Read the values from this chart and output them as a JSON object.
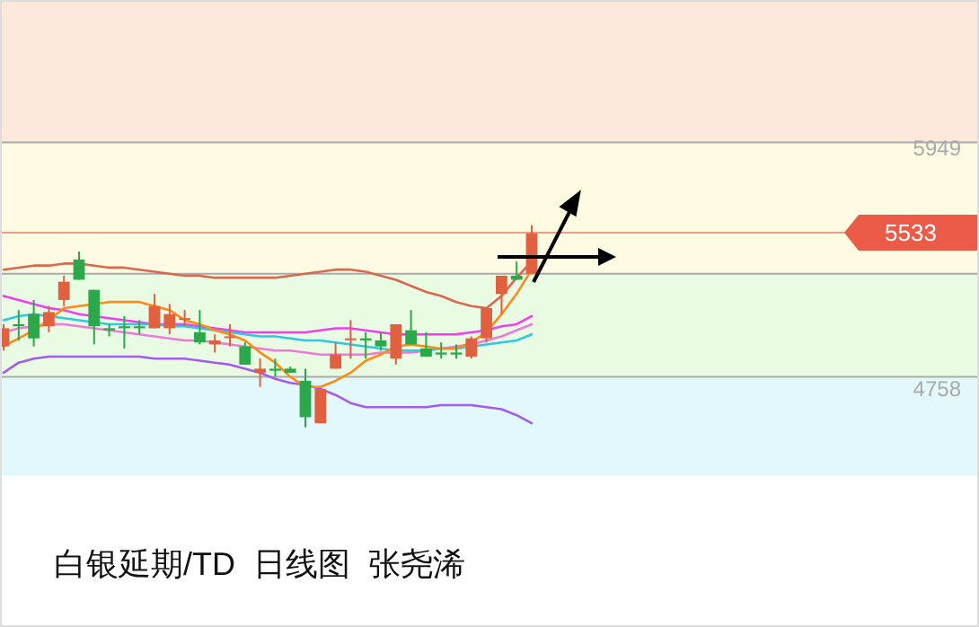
{
  "chart_data": {
    "type": "candlestick",
    "title": "白银延期/TD  日线图  张尧浠",
    "categories": [
      null,
      null,
      null,
      null,
      null,
      null,
      null,
      null,
      null,
      null,
      null,
      null,
      null,
      null,
      null,
      null,
      null,
      null,
      null,
      null,
      null,
      null,
      null,
      null,
      null,
      null,
      null,
      null,
      null,
      null,
      null,
      null,
      null,
      null,
      null,
      null
    ],
    "ohlc": [
      [
        4970,
        5080,
        4950,
        5060
      ],
      [
        5080,
        5150,
        5000,
        5070
      ],
      [
        5130,
        5200,
        4970,
        5010
      ],
      [
        5070,
        5170,
        5040,
        5140
      ],
      [
        5200,
        5320,
        5170,
        5290
      ],
      [
        5400,
        5440,
        5300,
        5300
      ],
      [
        5250,
        5250,
        4980,
        5070
      ],
      [
        5060,
        5080,
        5020,
        5050
      ],
      [
        5070,
        5120,
        4960,
        5060
      ],
      [
        5070,
        5100,
        5030,
        5060
      ],
      [
        5060,
        5230,
        5060,
        5170
      ],
      [
        5060,
        5180,
        5030,
        5130
      ],
      [
        5110,
        5150,
        5070,
        5110
      ],
      [
        5040,
        5150,
        4980,
        4990
      ],
      [
        4980,
        5030,
        4940,
        5000
      ],
      [
        5020,
        5080,
        4970,
        5020
      ],
      [
        4970,
        4990,
        4880,
        4880
      ],
      [
        4840,
        4910,
        4770,
        4860
      ],
      [
        4860,
        4910,
        4820,
        4850
      ],
      [
        4860,
        4870,
        4840,
        4840
      ],
      [
        4800,
        4860,
        4570,
        4620
      ],
      [
        4590,
        4760,
        4590,
        4760
      ],
      [
        4860,
        4990,
        4860,
        4930
      ],
      [
        5010,
        5100,
        4910,
        5010
      ],
      [
        5010,
        5040,
        4910,
        5000
      ],
      [
        5000,
        5040,
        4950,
        4970
      ],
      [
        4910,
        5080,
        4880,
        5080
      ],
      [
        5050,
        5150,
        4980,
        4980
      ],
      [
        4960,
        5040,
        4920,
        4920
      ],
      [
        4940,
        4990,
        4910,
        4930
      ],
      [
        4940,
        4980,
        4910,
        4930
      ],
      [
        4920,
        5020,
        4910,
        5010
      ],
      [
        5010,
        5160,
        4990,
        5160
      ],
      [
        5230,
        5320,
        5130,
        5320
      ],
      [
        5320,
        5390,
        5300,
        5300
      ],
      [
        5330,
        5570,
        5330,
        5530
      ]
    ],
    "series": [
      {
        "type": "line",
        "color": "#d9684f",
        "values": [
          5350,
          5360,
          5370,
          5370,
          5380,
          5380,
          5370,
          5360,
          5360,
          5350,
          5340,
          5330,
          5320,
          5320,
          5310,
          5310,
          5310,
          5310,
          5310,
          5320,
          5330,
          5340,
          5350,
          5350,
          5340,
          5320,
          5300,
          5270,
          5240,
          5220,
          5190,
          5170,
          5160,
          5220,
          5310,
          5390
        ]
      },
      {
        "type": "line",
        "color": "#a35cf0",
        "values": [
          4840,
          4890,
          4910,
          4920,
          4920,
          4920,
          4920,
          4920,
          4920,
          4920,
          4910,
          4910,
          4910,
          4900,
          4890,
          4880,
          4860,
          4840,
          4810,
          4790,
          4780,
          4760,
          4730,
          4690,
          4670,
          4670,
          4670,
          4670,
          4670,
          4680,
          4680,
          4680,
          4670,
          4660,
          4630,
          4590
        ]
      },
      {
        "type": "line",
        "color": "#f03ff0",
        "values": [
          5220,
          5200,
          5180,
          5160,
          5150,
          5130,
          5120,
          5110,
          5100,
          5090,
          5080,
          5080,
          5080,
          5070,
          5060,
          5050,
          5040,
          5040,
          5040,
          5040,
          5040,
          5050,
          5060,
          5060,
          5050,
          5040,
          5030,
          5030,
          5030,
          5030,
          5030,
          5040,
          5050,
          5070,
          5080,
          5120
        ]
      },
      {
        "type": "line",
        "color": "#f07ad8",
        "values": [
          5040,
          5060,
          5070,
          5080,
          5080,
          5070,
          5060,
          5050,
          5040,
          5030,
          5020,
          5010,
          5000,
          5000,
          4990,
          4980,
          4970,
          4960,
          4950,
          4950,
          4940,
          4930,
          4930,
          4930,
          4930,
          4940,
          4940,
          4940,
          4950,
          4960,
          4970,
          4980,
          5000,
          5020,
          5050,
          5080
        ]
      },
      {
        "type": "line",
        "color": "#2ec8e0",
        "values": [
          5100,
          5120,
          5130,
          5120,
          5110,
          5100,
          5090,
          5080,
          5080,
          5080,
          5080,
          5070,
          5070,
          5060,
          5050,
          5040,
          5030,
          5020,
          5020,
          5010,
          5000,
          5000,
          4990,
          4980,
          4970,
          4960,
          4950,
          4950,
          4950,
          4960,
          4960,
          4970,
          4980,
          4990,
          5000,
          5030
        ]
      },
      {
        "type": "line",
        "color": "#ff8a14",
        "values": [
          4970,
          5010,
          5050,
          5100,
          5160,
          5170,
          5180,
          5190,
          5190,
          5190,
          5170,
          5150,
          5100,
          5080,
          5050,
          5030,
          5000,
          4940,
          4890,
          4820,
          4770,
          4770,
          4800,
          4840,
          4900,
          4930,
          4970,
          4980,
          4970,
          4960,
          4960,
          4990,
          5040,
          5130,
          5230,
          5350
        ]
      }
    ],
    "ylim": [
      3582,
      6684
    ],
    "yticks": [
      5949,
      4758
    ],
    "ref_lines": [
      {
        "axis": "y",
        "value": 5533,
        "label": "5533",
        "color": "#ec5b47"
      }
    ],
    "bands": [
      {
        "axis": "y",
        "from": 5980,
        "to": 6684,
        "color": "#fde8dc"
      },
      {
        "axis": "y",
        "from": 5330,
        "to": 5980,
        "color": "#fffbe3"
      },
      {
        "axis": "y",
        "from": 4820,
        "to": 5330,
        "color": "#eafbe4"
      },
      {
        "axis": "y",
        "from": 4330,
        "to": 4820,
        "color": "#e2f8fb"
      }
    ]
  }
}
